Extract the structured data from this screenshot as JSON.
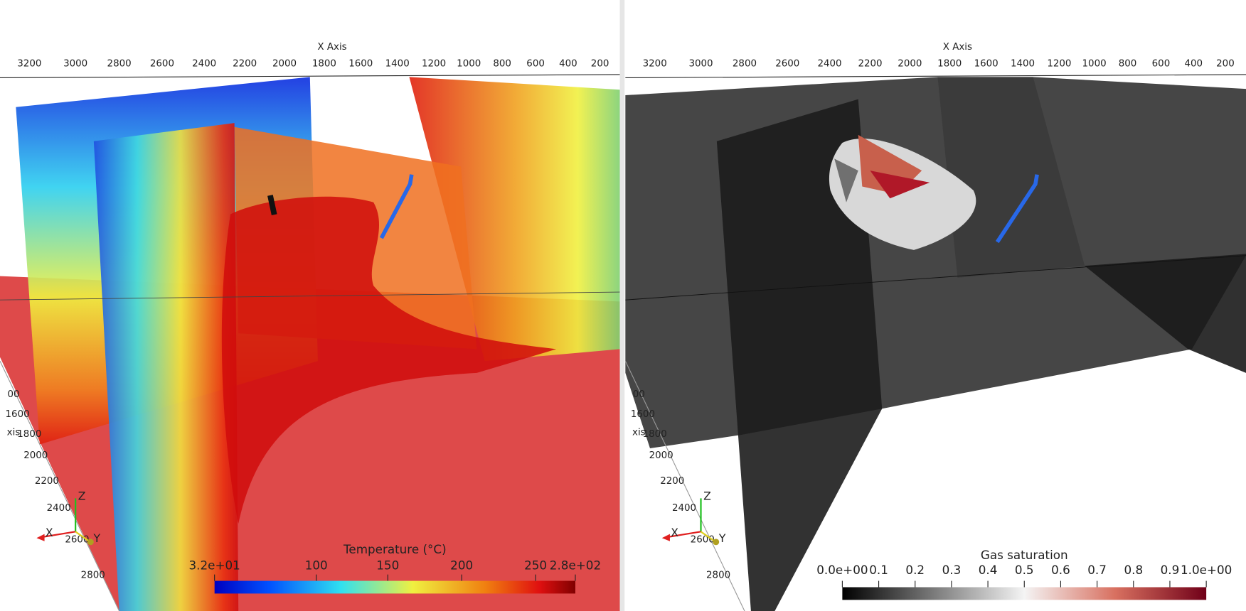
{
  "views": [
    {
      "x_axis": {
        "title": "X Axis",
        "ticks": [
          "3200",
          "3000",
          "2800",
          "2600",
          "2400",
          "2200",
          "2000",
          "1800",
          "1600",
          "1400",
          "1200",
          "1000",
          "800",
          "600",
          "400",
          "200"
        ]
      },
      "z_axis_ticks": [
        "00",
        "1600",
        "xis",
        "1800",
        "2000",
        "2200",
        "2400",
        "2600",
        "2800"
      ],
      "triad": [
        "Z",
        "X",
        "Y"
      ],
      "colorbar": {
        "title": "Temperature (°C)",
        "ticks": [
          "3.2e+01",
          "100",
          "150",
          "200",
          "250",
          "2.8e+02"
        ]
      }
    },
    {
      "x_axis": {
        "title": "X Axis",
        "ticks": [
          "3200",
          "3000",
          "2800",
          "2600",
          "2400",
          "2200",
          "2000",
          "1800",
          "1600",
          "1400",
          "1200",
          "1000",
          "800",
          "600",
          "400",
          "200"
        ]
      },
      "z_axis_ticks": [
        "00",
        "1600",
        "xis",
        "1800",
        "2000",
        "2200",
        "2400",
        "2600",
        "2800"
      ],
      "triad": [
        "Z",
        "X",
        "Y"
      ],
      "colorbar": {
        "title": "Gas saturation",
        "ticks": [
          "0.0e+00",
          "0.1",
          "0.2",
          "0.3",
          "0.4",
          "0.5",
          "0.6",
          "0.7",
          "0.8",
          "0.9",
          "1.0e+00"
        ]
      }
    }
  ]
}
